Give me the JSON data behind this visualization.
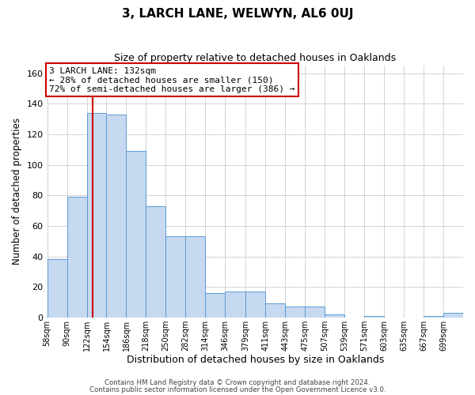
{
  "title": "3, LARCH LANE, WELWYN, AL6 0UJ",
  "subtitle": "Size of property relative to detached houses in Oaklands",
  "xlabel": "Distribution of detached houses by size in Oaklands",
  "ylabel": "Number of detached properties",
  "bar_values": [
    38,
    79,
    134,
    133,
    109,
    73,
    53,
    53,
    16,
    17,
    17,
    9,
    7,
    7,
    2,
    0,
    1,
    0,
    0,
    1,
    3
  ],
  "bin_edges": [
    58,
    90,
    122,
    154,
    186,
    218,
    250,
    282,
    314,
    346,
    379,
    411,
    443,
    475,
    507,
    539,
    571,
    603,
    635,
    667,
    699,
    731
  ],
  "tick_labels": [
    "58sqm",
    "90sqm",
    "122sqm",
    "154sqm",
    "186sqm",
    "218sqm",
    "250sqm",
    "282sqm",
    "314sqm",
    "346sqm",
    "379sqm",
    "411sqm",
    "443sqm",
    "475sqm",
    "507sqm",
    "539sqm",
    "571sqm",
    "603sqm",
    "635sqm",
    "667sqm",
    "699sqm"
  ],
  "property_line_x": 132,
  "bar_facecolor": "#c6d9f0",
  "bar_edgecolor": "#5b9bd5",
  "vline_color": "#cc0000",
  "annotation_line1": "3 LARCH LANE: 132sqm",
  "annotation_line2": "← 28% of detached houses are smaller (150)",
  "annotation_line3": "72% of semi-detached houses are larger (386) →",
  "annotation_box_edgecolor": "#cc0000",
  "ylim": [
    0,
    165
  ],
  "yticks": [
    0,
    20,
    40,
    60,
    80,
    100,
    120,
    140,
    160
  ],
  "footer_line1": "Contains HM Land Registry data © Crown copyright and database right 2024.",
  "footer_line2": "Contains public sector information licensed under the Open Government Licence v3.0.",
  "background_color": "#ffffff",
  "grid_color": "#cccccc"
}
